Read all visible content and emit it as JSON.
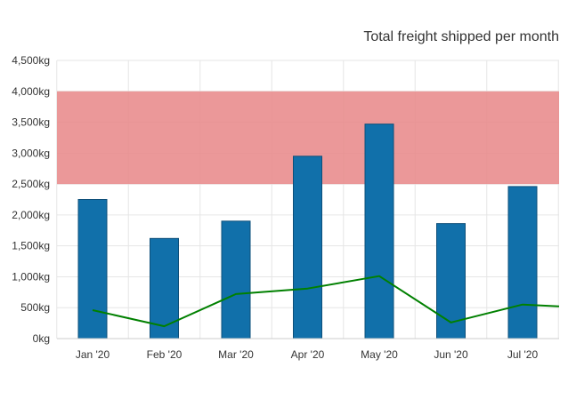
{
  "chart_data": {
    "type": "bar",
    "title": "Total freight shipped per month",
    "xlabel": "",
    "ylabel": "",
    "categories": [
      "Jan '20",
      "Feb '20",
      "Mar '20",
      "Apr '20",
      "May '20",
      "Jun '20",
      "Jul '20"
    ],
    "series": [
      {
        "type": "bar",
        "values": [
          2250,
          1620,
          1900,
          2950,
          3470,
          1860,
          2460
        ]
      },
      {
        "type": "line",
        "values": [
          460,
          200,
          720,
          810,
          1010,
          260,
          550
        ],
        "trailing_value": 520
      }
    ],
    "ylim": [
      0,
      4500
    ],
    "yticks": [
      "0kg",
      "500kg",
      "1,000kg",
      "1,500kg",
      "2,000kg",
      "2,500kg",
      "3,000kg",
      "3,500kg",
      "4,000kg",
      "4,500kg"
    ],
    "plot_band": [
      2500,
      4000
    ],
    "grid": true,
    "colors": {
      "bar_fill": "#1170aa",
      "bar_stroke": "#0d4f7a",
      "line": "#008000",
      "band": "#e88a8b",
      "grid": "#e6e6e6"
    }
  }
}
